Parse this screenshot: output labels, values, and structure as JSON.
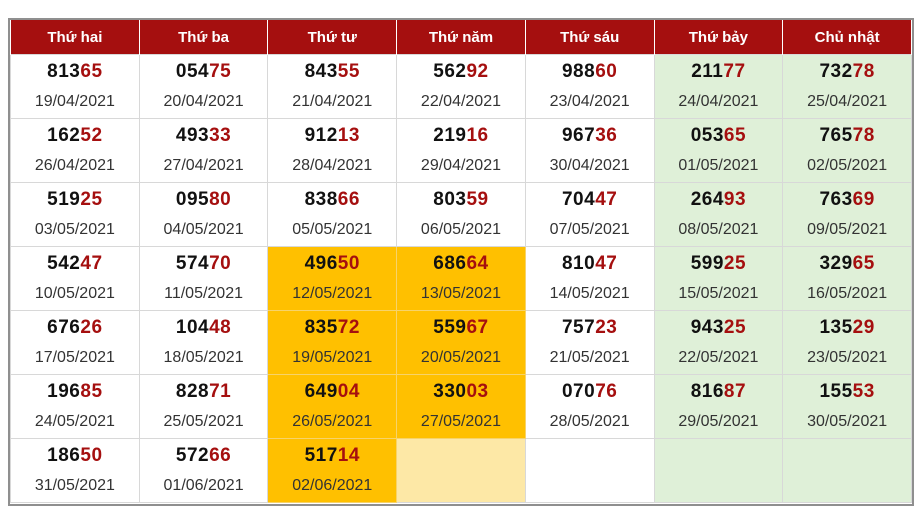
{
  "headers": [
    "Thứ hai",
    "Thứ ba",
    "Thứ tư",
    "Thứ năm",
    "Thứ sáu",
    "Thứ bảy",
    "Chủ nhật"
  ],
  "colors": {
    "header_bg": "#a50f0f",
    "accent_digits": "#a50f0f",
    "weekend_bg": "#dff0d8",
    "highlight_bg": "#ffc000",
    "highlight_pale_bg": "#fde8a6"
  },
  "rows": [
    [
      {
        "head": "813",
        "tail": "65",
        "date": "19/04/2021"
      },
      {
        "head": "054",
        "tail": "75",
        "date": "20/04/2021"
      },
      {
        "head": "843",
        "tail": "55",
        "date": "21/04/2021"
      },
      {
        "head": "562",
        "tail": "92",
        "date": "22/04/2021"
      },
      {
        "head": "988",
        "tail": "60",
        "date": "23/04/2021"
      },
      {
        "head": "211",
        "tail": "77",
        "date": "24/04/2021",
        "style": "weekend"
      },
      {
        "head": "732",
        "tail": "78",
        "date": "25/04/2021",
        "style": "weekend"
      }
    ],
    [
      {
        "head": "162",
        "tail": "52",
        "date": "26/04/2021"
      },
      {
        "head": "493",
        "tail": "33",
        "date": "27/04/2021"
      },
      {
        "head": "912",
        "tail": "13",
        "date": "28/04/2021"
      },
      {
        "head": "219",
        "tail": "16",
        "date": "29/04/2021"
      },
      {
        "head": "967",
        "tail": "36",
        "date": "30/04/2021"
      },
      {
        "head": "053",
        "tail": "65",
        "date": "01/05/2021",
        "style": "weekend"
      },
      {
        "head": "765",
        "tail": "78",
        "date": "02/05/2021",
        "style": "weekend"
      }
    ],
    [
      {
        "head": "519",
        "tail": "25",
        "date": "03/05/2021"
      },
      {
        "head": "095",
        "tail": "80",
        "date": "04/05/2021"
      },
      {
        "head": "838",
        "tail": "66",
        "date": "05/05/2021"
      },
      {
        "head": "803",
        "tail": "59",
        "date": "06/05/2021"
      },
      {
        "head": "704",
        "tail": "47",
        "date": "07/05/2021"
      },
      {
        "head": "264",
        "tail": "93",
        "date": "08/05/2021",
        "style": "weekend"
      },
      {
        "head": "763",
        "tail": "69",
        "date": "09/05/2021",
        "style": "weekend"
      }
    ],
    [
      {
        "head": "542",
        "tail": "47",
        "date": "10/05/2021"
      },
      {
        "head": "574",
        "tail": "70",
        "date": "11/05/2021"
      },
      {
        "head": "496",
        "tail": "50",
        "date": "12/05/2021",
        "style": "hl"
      },
      {
        "head": "686",
        "tail": "64",
        "date": "13/05/2021",
        "style": "hl"
      },
      {
        "head": "810",
        "tail": "47",
        "date": "14/05/2021"
      },
      {
        "head": "599",
        "tail": "25",
        "date": "15/05/2021",
        "style": "weekend"
      },
      {
        "head": "329",
        "tail": "65",
        "date": "16/05/2021",
        "style": "weekend"
      }
    ],
    [
      {
        "head": "676",
        "tail": "26",
        "date": "17/05/2021"
      },
      {
        "head": "104",
        "tail": "48",
        "date": "18/05/2021"
      },
      {
        "head": "835",
        "tail": "72",
        "date": "19/05/2021",
        "style": "hl"
      },
      {
        "head": "559",
        "tail": "67",
        "date": "20/05/2021",
        "style": "hl"
      },
      {
        "head": "757",
        "tail": "23",
        "date": "21/05/2021"
      },
      {
        "head": "943",
        "tail": "25",
        "date": "22/05/2021",
        "style": "weekend"
      },
      {
        "head": "135",
        "tail": "29",
        "date": "23/05/2021",
        "style": "weekend"
      }
    ],
    [
      {
        "head": "196",
        "tail": "85",
        "date": "24/05/2021"
      },
      {
        "head": "828",
        "tail": "71",
        "date": "25/05/2021"
      },
      {
        "head": "649",
        "tail": "04",
        "date": "26/05/2021",
        "style": "hl"
      },
      {
        "head": "330",
        "tail": "03",
        "date": "27/05/2021",
        "style": "hl"
      },
      {
        "head": "070",
        "tail": "76",
        "date": "28/05/2021"
      },
      {
        "head": "816",
        "tail": "87",
        "date": "29/05/2021",
        "style": "weekend"
      },
      {
        "head": "155",
        "tail": "53",
        "date": "30/05/2021",
        "style": "weekend"
      }
    ],
    [
      {
        "head": "186",
        "tail": "50",
        "date": "31/05/2021"
      },
      {
        "head": "572",
        "tail": "66",
        "date": "01/06/2021"
      },
      {
        "head": "517",
        "tail": "14",
        "date": "02/06/2021",
        "style": "hl"
      },
      {
        "head": "",
        "tail": "",
        "date": "",
        "style": "hl-pale"
      },
      {
        "head": "",
        "tail": "",
        "date": ""
      },
      {
        "head": "",
        "tail": "",
        "date": "",
        "style": "weekend"
      },
      {
        "head": "",
        "tail": "",
        "date": "",
        "style": "weekend"
      }
    ]
  ]
}
